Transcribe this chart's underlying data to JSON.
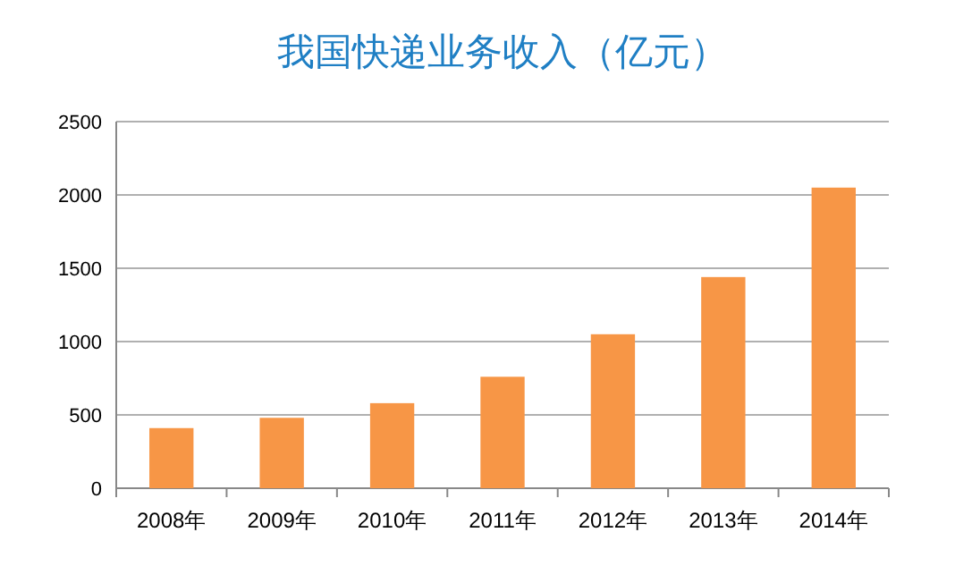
{
  "chart_data": {
    "type": "bar",
    "title": "我国快递业务收入（亿元）",
    "categories": [
      "2008年",
      "2009年",
      "2010年",
      "2011年",
      "2012年",
      "2013年",
      "2014年"
    ],
    "values": [
      410,
      480,
      580,
      760,
      1050,
      1440,
      2050
    ],
    "color": "#f79646",
    "ylim": [
      0,
      2500
    ],
    "yticks": [
      0,
      500,
      1000,
      1500,
      2000,
      2500
    ],
    "grid": "y"
  }
}
